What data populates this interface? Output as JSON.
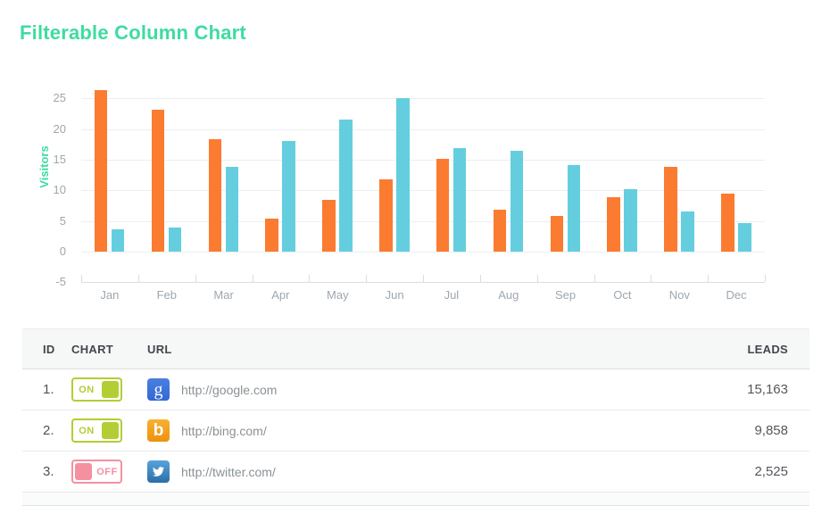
{
  "title": "Filterable Column Chart",
  "colors": {
    "title_teal": "#3EDCA1",
    "series_orange": "#FB7B30",
    "series_cyan": "#64CEDF",
    "toggle_on_green": "#B2CE34",
    "toggle_off_pink": "#F590A0",
    "axis_text_gray": "#9DA7AF"
  },
  "chart_data": {
    "type": "bar",
    "title": "",
    "xlabel": "",
    "ylabel": "Visitors",
    "categories": [
      "Jan",
      "Feb",
      "Mar",
      "Apr",
      "May",
      "Jun",
      "Jul",
      "Aug",
      "Sep",
      "Oct",
      "Nov",
      "Dec"
    ],
    "series": [
      {
        "name": "orange-series",
        "color": "#FB7B30",
        "values": [
          26.4,
          23.2,
          18.3,
          5.4,
          8.4,
          11.8,
          15.2,
          6.9,
          5.9,
          8.9,
          13.9,
          9.5
        ]
      },
      {
        "name": "cyan-series",
        "color": "#64CEDF",
        "values": [
          3.7,
          4.0,
          13.9,
          18.0,
          21.5,
          25.0,
          16.9,
          16.5,
          14.1,
          10.2,
          6.6,
          4.6
        ]
      }
    ],
    "ylim": [
      -5,
      27
    ],
    "ytick_labels": [
      "25",
      "20",
      "15",
      "10",
      "5",
      "0",
      "-5"
    ],
    "ytick_values": [
      25,
      20,
      15,
      10,
      5,
      0,
      -5
    ],
    "grid": true,
    "legend": "none"
  },
  "table": {
    "headers": {
      "id": "ID",
      "chart": "CHART",
      "url": "URL",
      "leads": "LEADS"
    },
    "rows": [
      {
        "id": "1.",
        "toggle": "ON",
        "site": "google",
        "url": "http://google.com",
        "leads": "15,163"
      },
      {
        "id": "2.",
        "toggle": "ON",
        "site": "bing",
        "url": "http://bing.com/",
        "leads": "9,858"
      },
      {
        "id": "3.",
        "toggle": "OFF",
        "site": "twitter",
        "url": "http://twitter.com/",
        "leads": "2,525"
      }
    ],
    "favicon_letters": {
      "google": "g",
      "bing": "b"
    }
  }
}
